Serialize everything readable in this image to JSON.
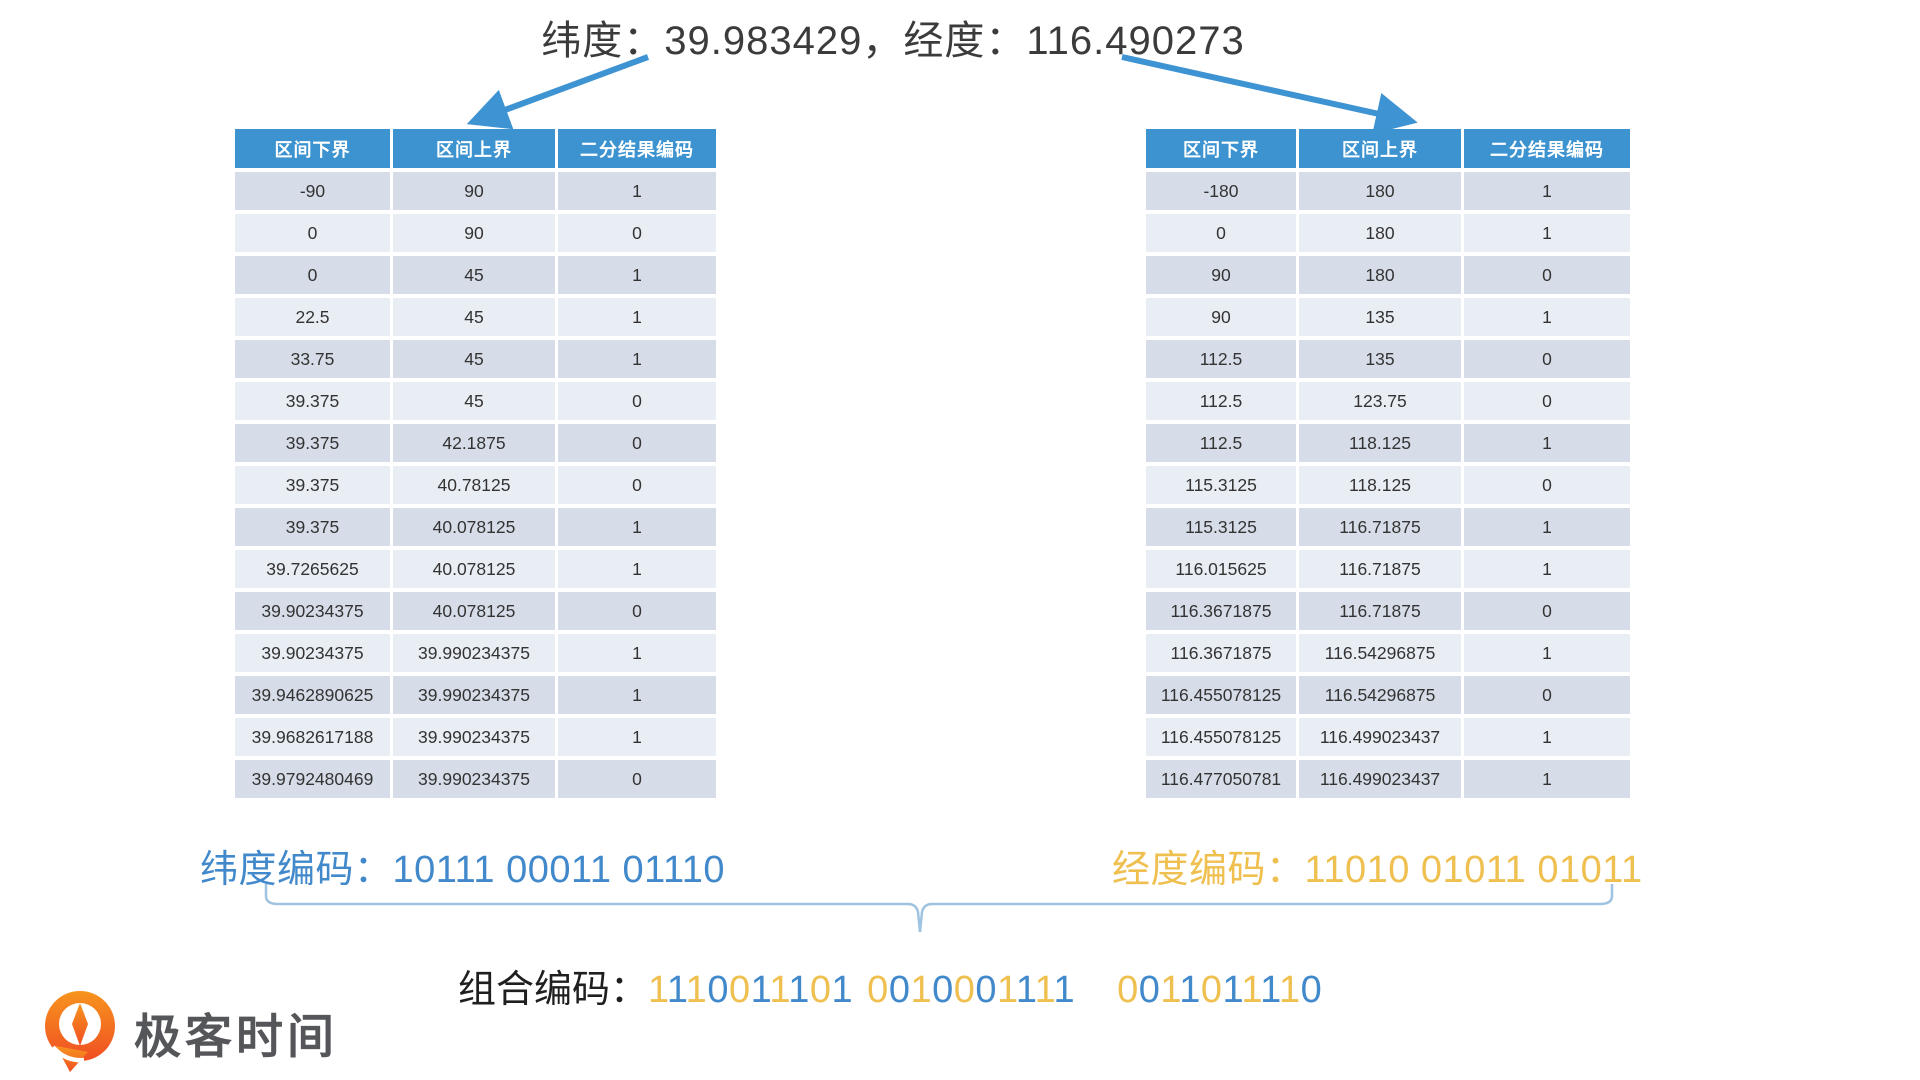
{
  "title": "纬度：39.983429，经度：116.490273",
  "tables": {
    "headers": [
      "区间下界",
      "区间上界",
      "二分结果编码"
    ],
    "latitude": {
      "rows": [
        [
          "-90",
          "90",
          "1"
        ],
        [
          "0",
          "90",
          "0"
        ],
        [
          "0",
          "45",
          "1"
        ],
        [
          "22.5",
          "45",
          "1"
        ],
        [
          "33.75",
          "45",
          "1"
        ],
        [
          "39.375",
          "45",
          "0"
        ],
        [
          "39.375",
          "42.1875",
          "0"
        ],
        [
          "39.375",
          "40.78125",
          "0"
        ],
        [
          "39.375",
          "40.078125",
          "1"
        ],
        [
          "39.7265625",
          "40.078125",
          "1"
        ],
        [
          "39.90234375",
          "40.078125",
          "0"
        ],
        [
          "39.90234375",
          "39.990234375",
          "1"
        ],
        [
          "39.9462890625",
          "39.990234375",
          "1"
        ],
        [
          "39.9682617188",
          "39.990234375",
          "1"
        ],
        [
          "39.9792480469",
          "39.990234375",
          "0"
        ]
      ]
    },
    "longitude": {
      "rows": [
        [
          "-180",
          "180",
          "1"
        ],
        [
          "0",
          "180",
          "1"
        ],
        [
          "90",
          "180",
          "0"
        ],
        [
          "90",
          "135",
          "1"
        ],
        [
          "112.5",
          "135",
          "0"
        ],
        [
          "112.5",
          "123.75",
          "0"
        ],
        [
          "112.5",
          "118.125",
          "1"
        ],
        [
          "115.3125",
          "118.125",
          "0"
        ],
        [
          "115.3125",
          "116.71875",
          "1"
        ],
        [
          "116.015625",
          "116.71875",
          "1"
        ],
        [
          "116.3671875",
          "116.71875",
          "0"
        ],
        [
          "116.3671875",
          "116.54296875",
          "1"
        ],
        [
          "116.455078125",
          "116.54296875",
          "0"
        ],
        [
          "116.455078125",
          "116.499023437",
          "1"
        ],
        [
          "116.477050781",
          "116.499023437",
          "1"
        ]
      ]
    }
  },
  "codes": {
    "latitude_label": "纬度编码：",
    "latitude_value": "10111 00011 01110",
    "longitude_label": "经度编码：",
    "longitude_value": "11010 01011 01011",
    "combined_label": "组合编码：",
    "combined_groups": [
      "1110011101",
      "0010001111",
      "0011011110"
    ]
  },
  "logo": {
    "text": "极客时间"
  },
  "colors": {
    "header_blue": "#3C93D0",
    "row_dark": "#D7DDE8",
    "row_light": "#E9EDF4",
    "code_blue": "#4189CB",
    "code_yellow": "#EFBF4F",
    "arrow_blue": "#3E93D3",
    "brace_blue": "#9FC3E0",
    "logo_orange_top": "#F7941E",
    "logo_orange_bottom": "#F04F23"
  }
}
